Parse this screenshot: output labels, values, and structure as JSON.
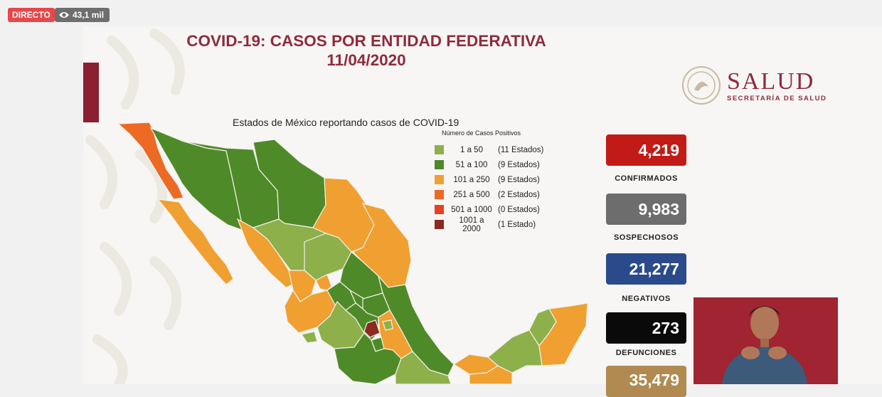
{
  "stream": {
    "live_label": "DIRECTO",
    "viewer_count": "43,1 mil",
    "viewer_icon": "eye-icon"
  },
  "slide": {
    "title_line1": "COVID-19: CASOS POR ENTIDAD FEDERATIVA",
    "title_line2": "11/04/2020",
    "logo_text": "SALUD",
    "logo_subtext": "SECRETARÍA DE SALUD",
    "map_title": "Estados de México reportando casos de COVID-19",
    "legend_heading": "Número de Casos Positivos",
    "legend": [
      {
        "range": "1 a 50",
        "count": "(11 Estados)",
        "color": "#8db04a"
      },
      {
        "range": "51 a 100",
        "count": "(9 Estados)",
        "color": "#4f8a28"
      },
      {
        "range": "101 a 250",
        "count": "(9 Estados)",
        "color": "#f0a030"
      },
      {
        "range": "251 a 500",
        "count": "(2 Estados)",
        "color": "#ec6a24"
      },
      {
        "range": "501 a 1000",
        "count": "(0 Estados)",
        "color": "#e84024"
      },
      {
        "range": "1001 a 2000",
        "count": "(1 Estado)",
        "color": "#8a2a20"
      }
    ],
    "stats": [
      {
        "value": "4,219",
        "label": "CONFIRMADOS",
        "color": "#c21b17"
      },
      {
        "value": "9,983",
        "label": "SOSPECHOSOS",
        "color": "#6d6d6d"
      },
      {
        "value": "21,277",
        "label": "NEGATIVOS",
        "color": "#2a4a8c"
      },
      {
        "value": "273",
        "label": "DEFUNCIONES",
        "color": "#0a0a0a"
      },
      {
        "value": "35,479",
        "label": "",
        "color": "#b08a50"
      }
    ],
    "colors": {
      "brand": "#8f2a3c",
      "accent_bar": "#8a2030"
    }
  }
}
